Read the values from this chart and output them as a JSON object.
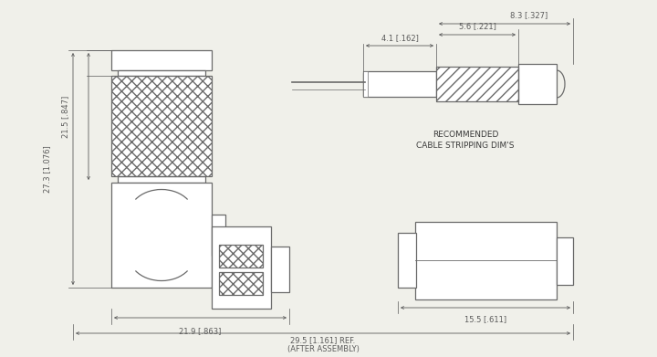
{
  "bg_color": "#f0f0ea",
  "line_color": "#6a6a6a",
  "text_color": "#3a3a3a",
  "dim_color": "#5a5a5a",
  "font_size": 6.0,
  "annotations": {
    "dim_27_3": "27.3 [1.076]",
    "dim_21_5": "21.5 [.847]",
    "dim_21_9": "21.9 [.863]",
    "dim_29_5": "29.5 [1.161] REF.",
    "dim_29_5_sub": "(AFTER ASSEMBLY)",
    "dim_4_1": "4.1 [.162]",
    "dim_5_6": "5.6 [.221]",
    "dim_8_3": "8.3 [.327]",
    "dim_15_5": "15.5 [.611]",
    "cable_label1": "RECOMMENDED",
    "cable_label2": "CABLE STRIPPING DIM'S"
  }
}
